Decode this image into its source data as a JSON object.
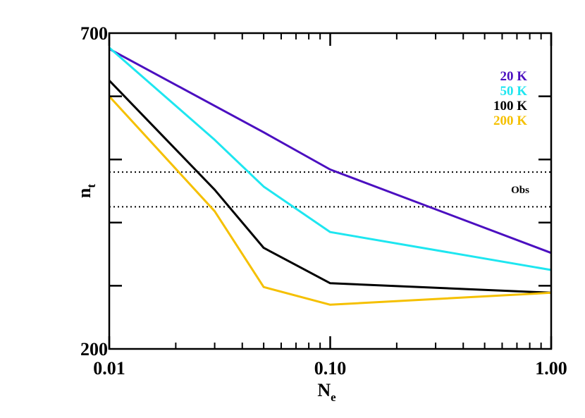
{
  "chart_data": {
    "type": "line",
    "x_scale": "log",
    "xlim": [
      0.01,
      1.0
    ],
    "ylim": [
      200,
      700
    ],
    "x_ticks": [
      0.01,
      0.1,
      1.0
    ],
    "x_tick_labels": [
      "0.01",
      "0.10",
      "1.00"
    ],
    "y_ticks": [
      200,
      700
    ],
    "y_tick_labels": [
      "200",
      "700"
    ],
    "xlabel": "N",
    "xlabel_sub": "e",
    "ylabel": "n",
    "ylabel_sub": "t",
    "series": [
      {
        "name": "20 K",
        "color": "#4b0fc0",
        "x": [
          0.01,
          0.05,
          0.1,
          1.0
        ],
        "y": [
          675,
          543,
          484,
          352
        ]
      },
      {
        "name": "50 K",
        "color": "#1ee6f0",
        "x": [
          0.01,
          0.03,
          0.05,
          0.1,
          1.0
        ],
        "y": [
          677,
          531,
          457,
          385,
          325
        ]
      },
      {
        "name": "100 K",
        "color": "#000000",
        "x": [
          0.01,
          0.03,
          0.05,
          0.1,
          1.0
        ],
        "y": [
          625,
          452,
          360,
          304,
          289
        ]
      },
      {
        "name": "200 K",
        "color": "#f5c000",
        "x": [
          0.01,
          0.03,
          0.05,
          0.1,
          1.0
        ],
        "y": [
          600,
          418,
          298,
          270,
          289
        ]
      }
    ],
    "reference_lines": [
      {
        "y": 480,
        "style": "dotted"
      },
      {
        "y": 425,
        "style": "dotted"
      }
    ],
    "annotation": "Obs",
    "legend_position": "top-right",
    "grid": false
  }
}
